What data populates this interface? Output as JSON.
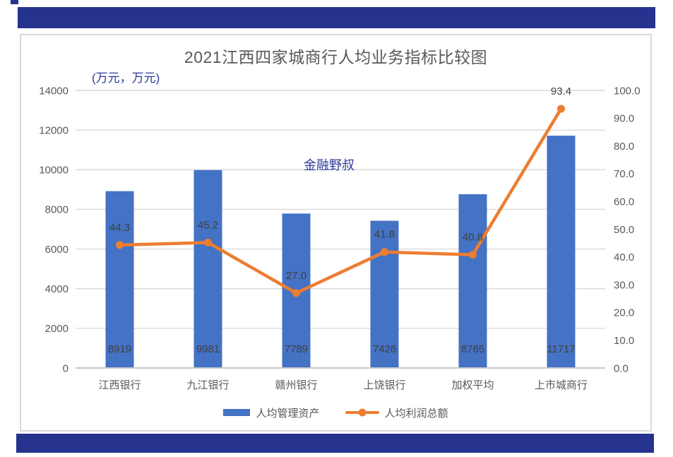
{
  "page": {
    "banner_color": "#25338E"
  },
  "chart_data": {
    "type": "combo-bar-line",
    "title": "2021江西四家城商行人均业务指标比较图",
    "units_label": "(万元，万元)",
    "watermark": "金融野叔",
    "categories": [
      "江西银行",
      "九江银行",
      "赣州银行",
      "上饶银行",
      "加权平均",
      "上市城商行"
    ],
    "series": [
      {
        "name": "人均管理资产",
        "type": "bar",
        "axis": "left",
        "color": "#4472C4",
        "values": [
          8919,
          9981,
          7789,
          7426,
          8765,
          11717
        ],
        "labels": [
          "8919",
          "9981",
          "7789",
          "7426",
          "8765",
          "11717"
        ]
      },
      {
        "name": "人均利润总额",
        "type": "line",
        "axis": "right",
        "color": "#ED7D31",
        "values": [
          44.3,
          45.2,
          27.0,
          41.8,
          40.8,
          93.4
        ],
        "labels": [
          "44.3",
          "45.2",
          "27.0",
          "41.8",
          "40.8",
          "93.4"
        ]
      }
    ],
    "left_axis": {
      "min": 0,
      "max": 14000,
      "step": 2000,
      "tick_labels": [
        "0",
        "2000",
        "4000",
        "6000",
        "8000",
        "10000",
        "12000",
        "14000"
      ]
    },
    "right_axis": {
      "min": 0,
      "max": 100,
      "step": 10,
      "tick_labels": [
        "0.0",
        "10.0",
        "20.0",
        "30.0",
        "40.0",
        "50.0",
        "60.0",
        "70.0",
        "80.0",
        "90.0",
        "100.0"
      ]
    },
    "grid": true,
    "legend_position": "bottom",
    "colors": {
      "grid": "#D9D9D9",
      "axis_line": "#C8C8C8",
      "tick_text": "#595959",
      "title_text": "#595959",
      "data_label_text": "#404040",
      "accent_text": "#2B3A98"
    }
  }
}
